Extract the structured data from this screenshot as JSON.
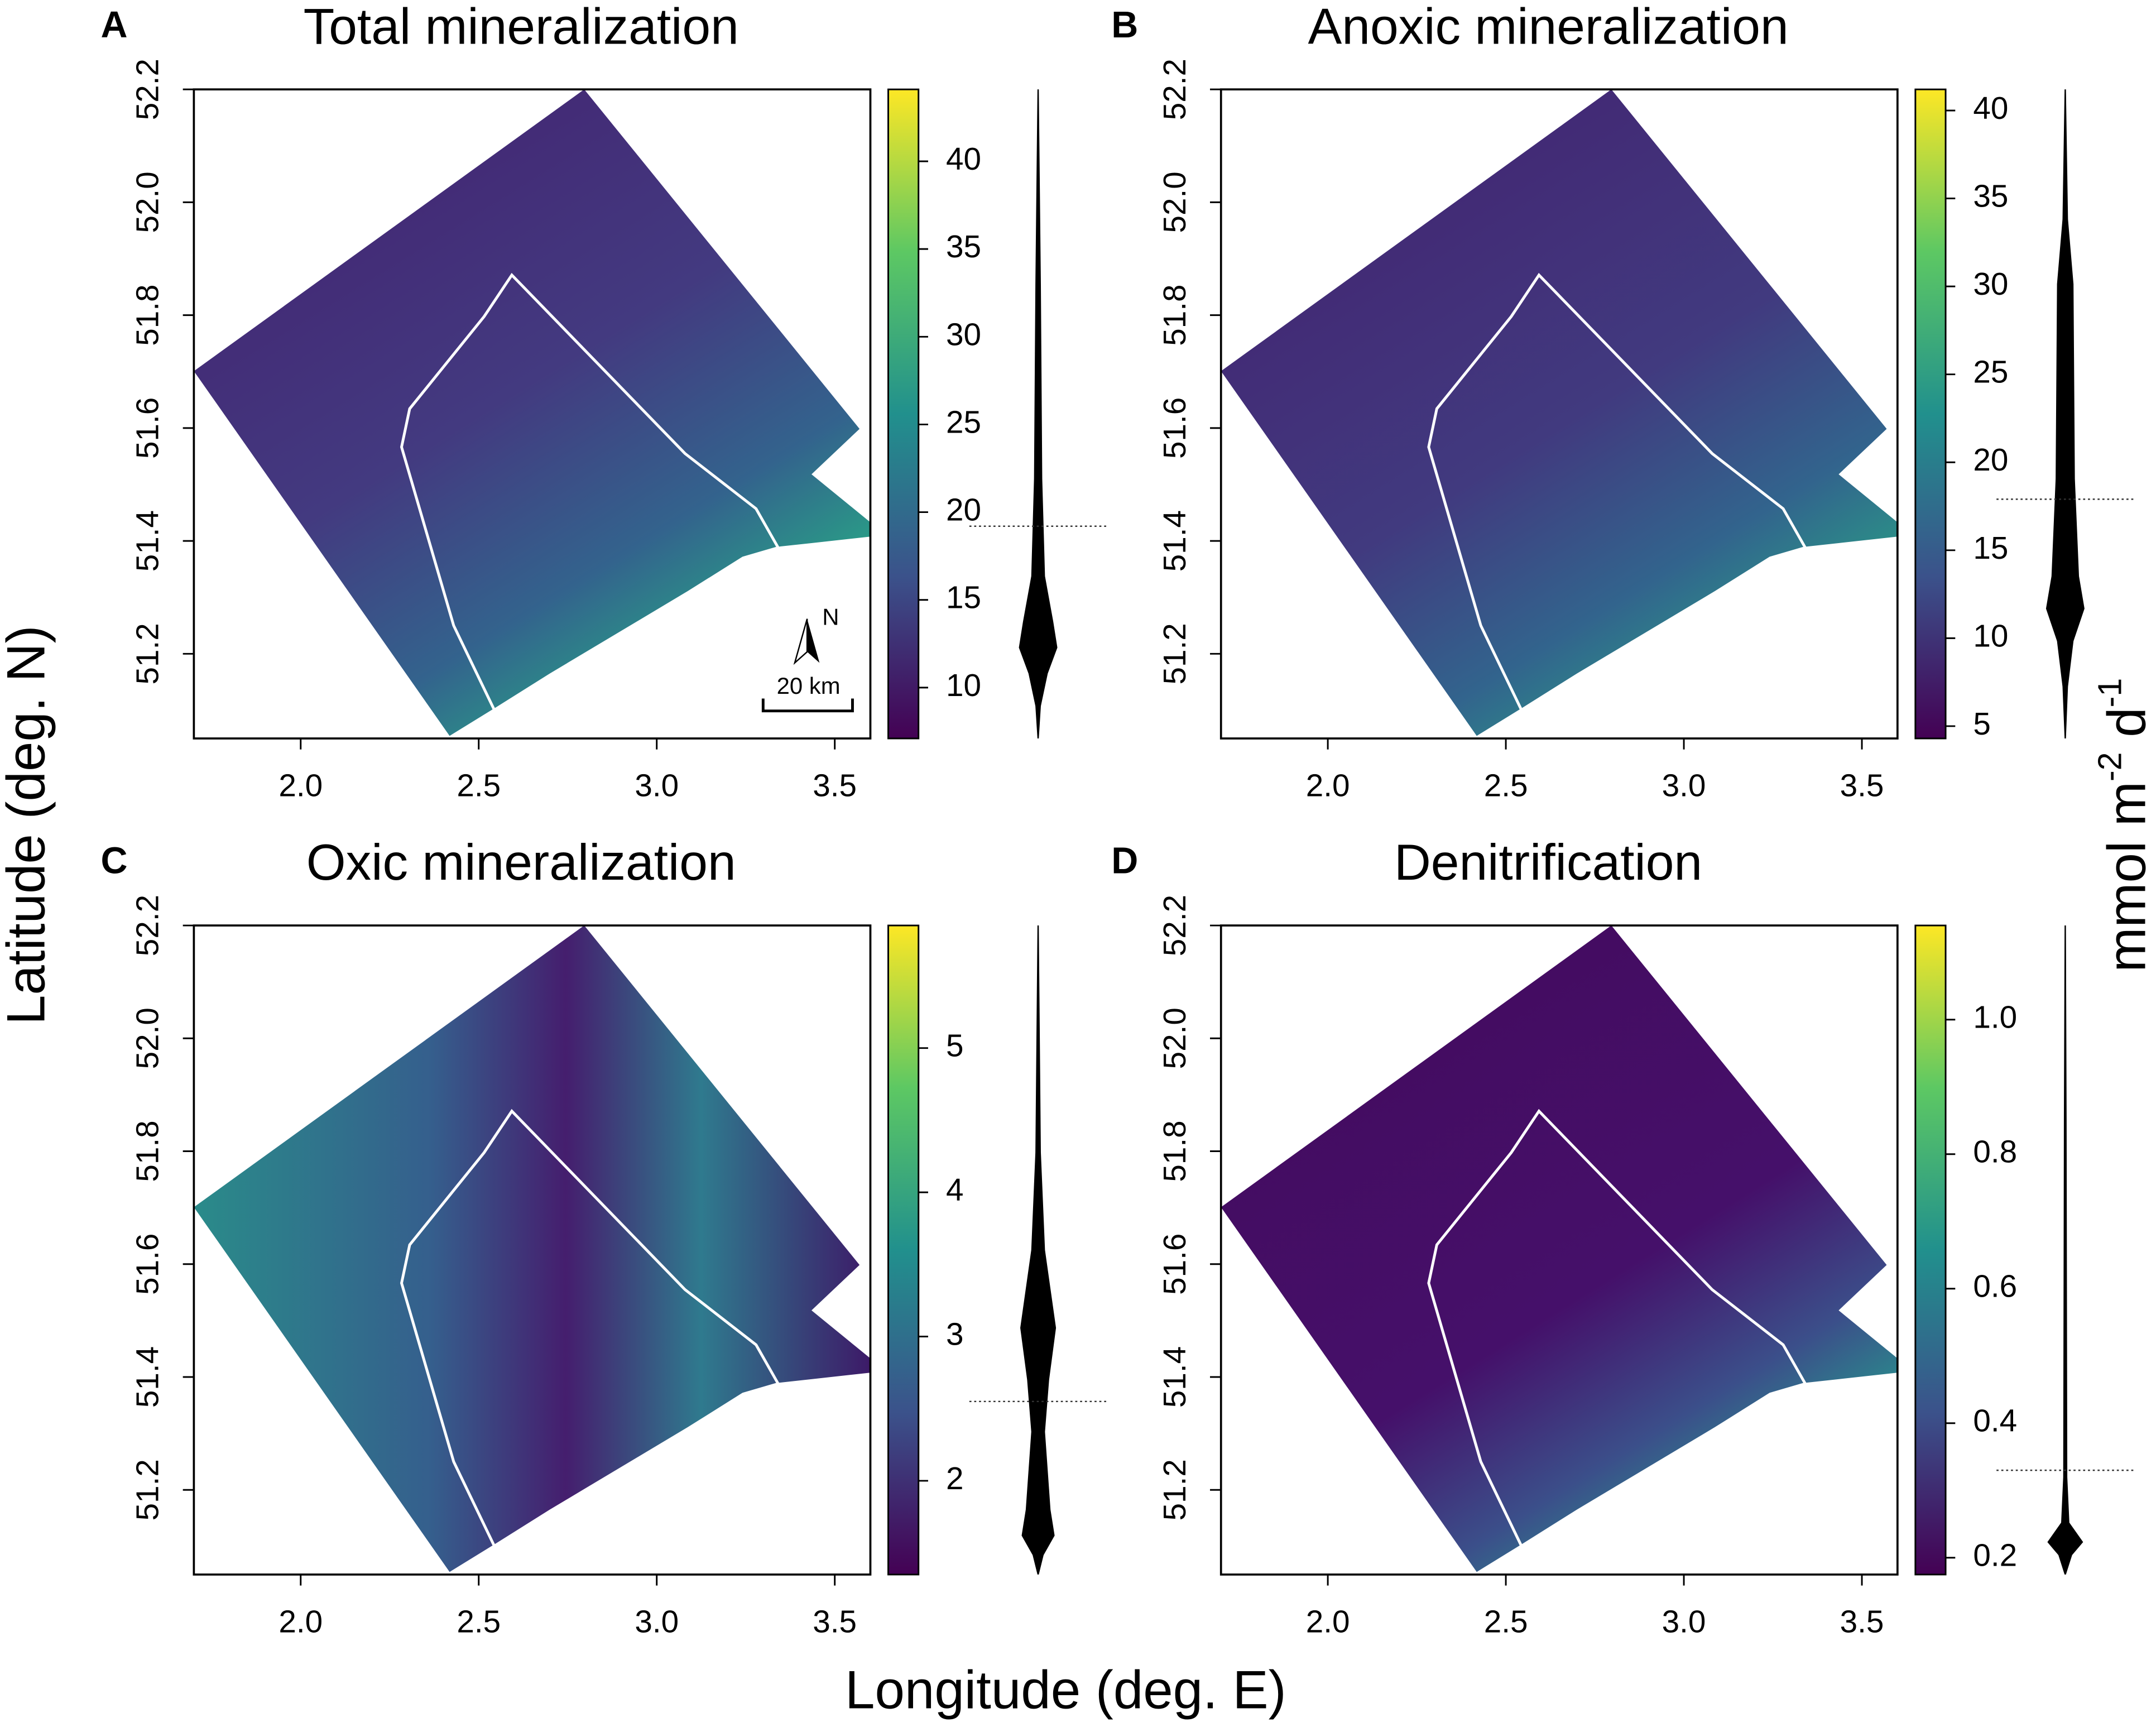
{
  "x_label": "Longitude (deg. E)",
  "y_label": "Latitude (deg. N)",
  "colorbar_label": [
    "mmol m",
    "-2",
    " d",
    "-1"
  ],
  "scale_bar": "20 km",
  "north": "N",
  "chart_data": [
    {
      "type": "map",
      "panel": "A",
      "title": "Total mineralization",
      "xlim": [
        1.7,
        3.6
      ],
      "ylim": [
        51.05,
        52.2
      ],
      "xticks": [
        {
          "value": 2,
          "label": "2.0"
        },
        2.5,
        {
          "value": 3,
          "label": "3.0"
        },
        3.5
      ],
      "yticks": [
        51.2,
        51.4,
        51.6,
        51.8,
        {
          "value": 52,
          "label": "52.0"
        },
        52.2
      ],
      "colorbar": {
        "lim": [
          7.1,
          44.1
        ],
        "ticks": [
          10,
          15,
          20,
          25,
          30,
          35,
          40
        ]
      },
      "reference": 19.2
    },
    {
      "type": "map",
      "panel": "B",
      "title": "Anoxic mineralization",
      "xlim": [
        1.7,
        3.6
      ],
      "ylim": [
        51.05,
        52.2
      ],
      "xticks": [
        {
          "value": 2,
          "label": "2.0"
        },
        2.5,
        {
          "value": 3,
          "label": "3.0"
        },
        3.5
      ],
      "yticks": [
        51.2,
        51.4,
        51.6,
        51.8,
        {
          "value": 52,
          "label": "52.0"
        },
        52.2
      ],
      "colorbar": {
        "lim": [
          4.3,
          41.2
        ],
        "ticks": [
          5,
          10,
          15,
          20,
          25,
          30,
          35,
          40
        ]
      },
      "reference": 17.9
    },
    {
      "type": "map",
      "panel": "C",
      "title": "Oxic mineralization",
      "xlim": [
        1.7,
        3.6
      ],
      "ylim": [
        51.05,
        52.2
      ],
      "xticks": [
        {
          "value": 2,
          "label": "2.0"
        },
        2.5,
        {
          "value": 3,
          "label": "3.0"
        },
        3.5
      ],
      "yticks": [
        51.2,
        51.4,
        51.6,
        51.8,
        {
          "value": 52,
          "label": "52.0"
        },
        52.2
      ],
      "colorbar": {
        "lim": [
          1.35,
          5.85
        ],
        "ticks": [
          2,
          3,
          4,
          5
        ]
      },
      "reference": 2.55
    },
    {
      "type": "map",
      "panel": "D",
      "title": "Denitrification",
      "xlim": [
        1.7,
        3.6
      ],
      "ylim": [
        51.05,
        52.2
      ],
      "xticks": [
        {
          "value": 2,
          "label": "2.0"
        },
        2.5,
        {
          "value": 3,
          "label": "3.0"
        },
        3.5
      ],
      "yticks": [
        51.2,
        51.4,
        51.6,
        51.8,
        {
          "value": 52,
          "label": "52.0"
        },
        52.2
      ],
      "colorbar": {
        "lim": [
          0.175,
          1.14
        ],
        "ticks": [
          0.2,
          0.4,
          0.6,
          0.8,
          {
            "value": 1,
            "label": "1.0"
          }
        ]
      },
      "reference": 0.33
    }
  ]
}
